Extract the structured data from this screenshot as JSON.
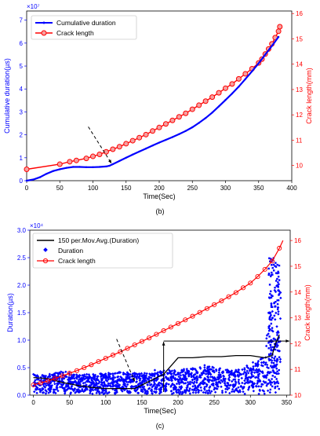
{
  "chart_data": [
    {
      "type": "line",
      "panel_label": "(b)",
      "xlabel": "Time(Sec)",
      "ylabel": "Cumulative duration(µs)",
      "ylabel2": "Crack length(mm)",
      "exponent": "×10⁷",
      "xlim": [
        0,
        400
      ],
      "ylim": [
        0,
        7.4
      ],
      "y2lim": [
        9.4,
        16.1
      ],
      "x_ticks": [
        "0",
        "50",
        "100",
        "150",
        "200",
        "250",
        "300",
        "350",
        "400"
      ],
      "y_ticks": [
        "0",
        "1",
        "2",
        "3",
        "4",
        "5",
        "6",
        "7"
      ],
      "y2_ticks": [
        "10",
        "11",
        "12",
        "13",
        "14",
        "15",
        "16"
      ],
      "colors": {
        "left": "#0000ff",
        "right": "#ff0000"
      },
      "series": [
        {
          "name": "Cumulative duration",
          "axis": "left",
          "color": "#0000ff",
          "x": [
            0,
            10,
            20,
            30,
            40,
            50,
            60,
            70,
            80,
            90,
            100,
            110,
            120,
            125,
            130,
            140,
            150,
            160,
            170,
            180,
            190,
            200,
            210,
            220,
            230,
            240,
            250,
            260,
            270,
            280,
            290,
            300,
            310,
            320,
            330,
            340,
            350,
            360,
            370,
            380
          ],
          "y": [
            0,
            0.05,
            0.15,
            0.3,
            0.42,
            0.5,
            0.56,
            0.6,
            0.6,
            0.59,
            0.59,
            0.6,
            0.62,
            0.65,
            0.72,
            0.86,
            1.0,
            1.14,
            1.27,
            1.4,
            1.53,
            1.66,
            1.78,
            1.9,
            2.03,
            2.17,
            2.33,
            2.52,
            2.73,
            2.97,
            3.24,
            3.52,
            3.8,
            4.1,
            4.43,
            4.77,
            5.12,
            5.5,
            5.88,
            6.27
          ]
        },
        {
          "name": "Crack length",
          "axis": "right",
          "color": "#ff0000",
          "x": [
            0,
            50,
            65,
            75,
            90,
            100,
            110,
            120,
            130,
            140,
            150,
            160,
            170,
            180,
            190,
            200,
            210,
            220,
            230,
            240,
            250,
            260,
            270,
            280,
            290,
            300,
            310,
            320,
            330,
            340,
            350,
            355,
            360,
            365,
            370,
            375,
            380,
            382
          ],
          "y": [
            9.85,
            10.05,
            10.15,
            10.2,
            10.28,
            10.36,
            10.44,
            10.54,
            10.64,
            10.74,
            10.86,
            10.98,
            11.1,
            11.22,
            11.36,
            11.5,
            11.64,
            11.78,
            11.92,
            12.06,
            12.22,
            12.38,
            12.54,
            12.7,
            12.87,
            13.05,
            13.22,
            13.42,
            13.62,
            13.82,
            14.05,
            14.2,
            14.4,
            14.6,
            14.8,
            15.05,
            15.3,
            15.48
          ]
        }
      ],
      "annotation": {
        "type": "dashed-arrow",
        "from": [
          93,
          2.35
        ],
        "to": [
          128,
          0.75
        ]
      }
    },
    {
      "type": "scatter",
      "panel_label": "(c)",
      "xlabel": "Time(Sec)",
      "ylabel": "Duration(µs)",
      "ylabel2": "Crack length(mm)",
      "exponent": "×10⁴",
      "xlim": [
        -5,
        355
      ],
      "ylim": [
        0,
        3.0
      ],
      "y2lim": [
        10,
        16.4
      ],
      "x_ticks": [
        "0",
        "50",
        "100",
        "150",
        "200",
        "250",
        "300",
        "350"
      ],
      "y_ticks": [
        "0.0",
        "0.5",
        "1.0",
        "1.5",
        "2.0",
        "2.5",
        "3.0"
      ],
      "y2_ticks": [
        "10",
        "11",
        "12",
        "13",
        "14",
        "15",
        "16"
      ],
      "colors": {
        "left": "#0000ff",
        "right": "#ff0000"
      },
      "series": [
        {
          "name": "150 per.Mov.Avg.(Duration)",
          "axis": "left",
          "color": "#000000",
          "x": [
            0,
            20,
            40,
            60,
            80,
            100,
            120,
            140,
            160,
            180,
            200,
            220,
            240,
            260,
            280,
            300,
            310,
            320,
            330,
            335,
            340
          ],
          "y": [
            0.32,
            0.3,
            0.23,
            0.18,
            0.14,
            0.12,
            0.12,
            0.12,
            0.25,
            0.38,
            0.68,
            0.68,
            0.7,
            0.7,
            0.72,
            0.72,
            0.7,
            0.68,
            0.72,
            0.95,
            1.1
          ]
        },
        {
          "name": "Duration",
          "axis": "left",
          "color": "#0000ff",
          "note": "dense scatter band; upper envelope (x, y)",
          "x": [
            0,
            20,
            40,
            60,
            80,
            100,
            120,
            140,
            160,
            180,
            200,
            220,
            240,
            260,
            280,
            300,
            320,
            330,
            340
          ],
          "y": [
            0.45,
            0.4,
            0.5,
            0.42,
            0.42,
            0.45,
            0.48,
            0.45,
            0.45,
            0.5,
            0.52,
            0.55,
            0.6,
            0.55,
            0.5,
            0.65,
            0.9,
            2.2,
            2.5
          ]
        },
        {
          "name": "Crack length",
          "axis": "right",
          "color": "#ff0000",
          "x": [
            0,
            20,
            40,
            60,
            80,
            100,
            120,
            140,
            160,
            180,
            200,
            220,
            240,
            260,
            280,
            300,
            310,
            320,
            330,
            335,
            340,
            345
          ],
          "y": [
            10.4,
            10.55,
            10.75,
            10.95,
            11.18,
            11.43,
            11.68,
            11.95,
            12.22,
            12.5,
            12.78,
            13.06,
            13.36,
            13.66,
            13.98,
            14.35,
            14.6,
            14.88,
            15.2,
            15.45,
            15.7,
            16.0
          ]
        }
      ],
      "annotation": {
        "type": "dashed-arrow",
        "from": [
          115,
          1.02
        ],
        "to": [
          140,
          0.25
        ]
      },
      "guides": {
        "x": 180,
        "crack_length": 12.1
      }
    }
  ]
}
